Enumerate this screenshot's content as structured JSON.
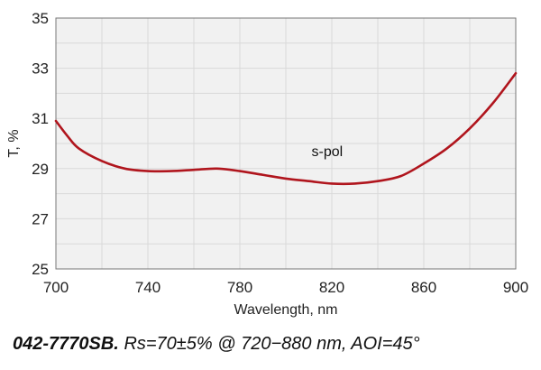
{
  "chart_data": {
    "type": "line",
    "title": "",
    "xlabel": "Wavelength, nm",
    "ylabel": "T, %",
    "xlim": [
      700,
      900
    ],
    "ylim": [
      25,
      35
    ],
    "xticks": [
      700,
      740,
      780,
      820,
      860,
      900
    ],
    "yticks": [
      25,
      27,
      29,
      31,
      33,
      35
    ],
    "grid": true,
    "colors": {
      "series": "#b0151d",
      "grid": "#d9d9d9",
      "plot_background": "#f1f1f1"
    },
    "annotations": [
      {
        "text": "s-pol",
        "x": 818,
        "y": 29.5
      }
    ],
    "series": [
      {
        "name": "s-pol",
        "x": [
          700,
          705,
          710,
          720,
          730,
          740,
          750,
          760,
          770,
          780,
          790,
          800,
          810,
          820,
          830,
          840,
          850,
          860,
          870,
          880,
          890,
          900
        ],
        "values": [
          30.9,
          30.3,
          29.8,
          29.3,
          29.0,
          28.9,
          28.9,
          28.95,
          29.0,
          28.9,
          28.75,
          28.6,
          28.5,
          28.4,
          28.4,
          28.5,
          28.7,
          29.2,
          29.8,
          30.6,
          31.6,
          32.8
        ]
      }
    ]
  },
  "caption": {
    "part_number": "042-7770SB.",
    "spec": "Rs=70±5% @ 720−880 nm, AOI=45°"
  }
}
